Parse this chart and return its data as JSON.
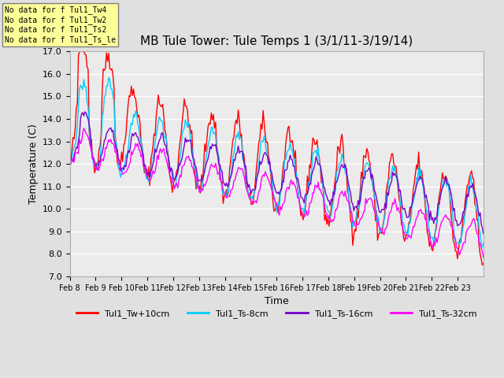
{
  "title": "MB Tule Tower: Tule Temps 1 (3/1/11-3/19/14)",
  "xlabel": "Time",
  "ylabel": "Temperature (C)",
  "ylim": [
    7.0,
    17.0
  ],
  "yticks": [
    7.0,
    8.0,
    9.0,
    10.0,
    11.0,
    12.0,
    13.0,
    14.0,
    15.0,
    16.0,
    17.0
  ],
  "colors": {
    "Tul1_Tw+10cm": "#ff0000",
    "Tul1_Ts-8cm": "#00ccff",
    "Tul1_Ts-16cm": "#7700cc",
    "Tul1_Ts-32cm": "#ff00ff"
  },
  "legend_labels": [
    "Tul1_Tw+10cm",
    "Tul1_Ts-8cm",
    "Tul1_Ts-16cm",
    "Tul1_Ts-32cm"
  ],
  "xtick_labels": [
    "Feb 8",
    "Feb 9",
    "Feb 10",
    "Feb 11",
    "Feb 12",
    "Feb 13",
    "Feb 14",
    "Feb 15",
    "Feb 16",
    "Feb 17",
    "Feb 18",
    "Feb 19",
    "Feb 20",
    "Feb 21",
    "Feb 22",
    "Feb 23"
  ],
  "annotations": [
    "No data for f Tul1_Tw4",
    "No data for f Tul1_Tw2",
    "No data for f Tul1_Ts2",
    "No data for f Tul1_Ts_le"
  ],
  "annotation_box_color": "#ffff99",
  "background_color": "#e0e0e0",
  "plot_bg_color": "#ebebeb",
  "grid_color": "#ffffff",
  "linewidth": 1.0
}
